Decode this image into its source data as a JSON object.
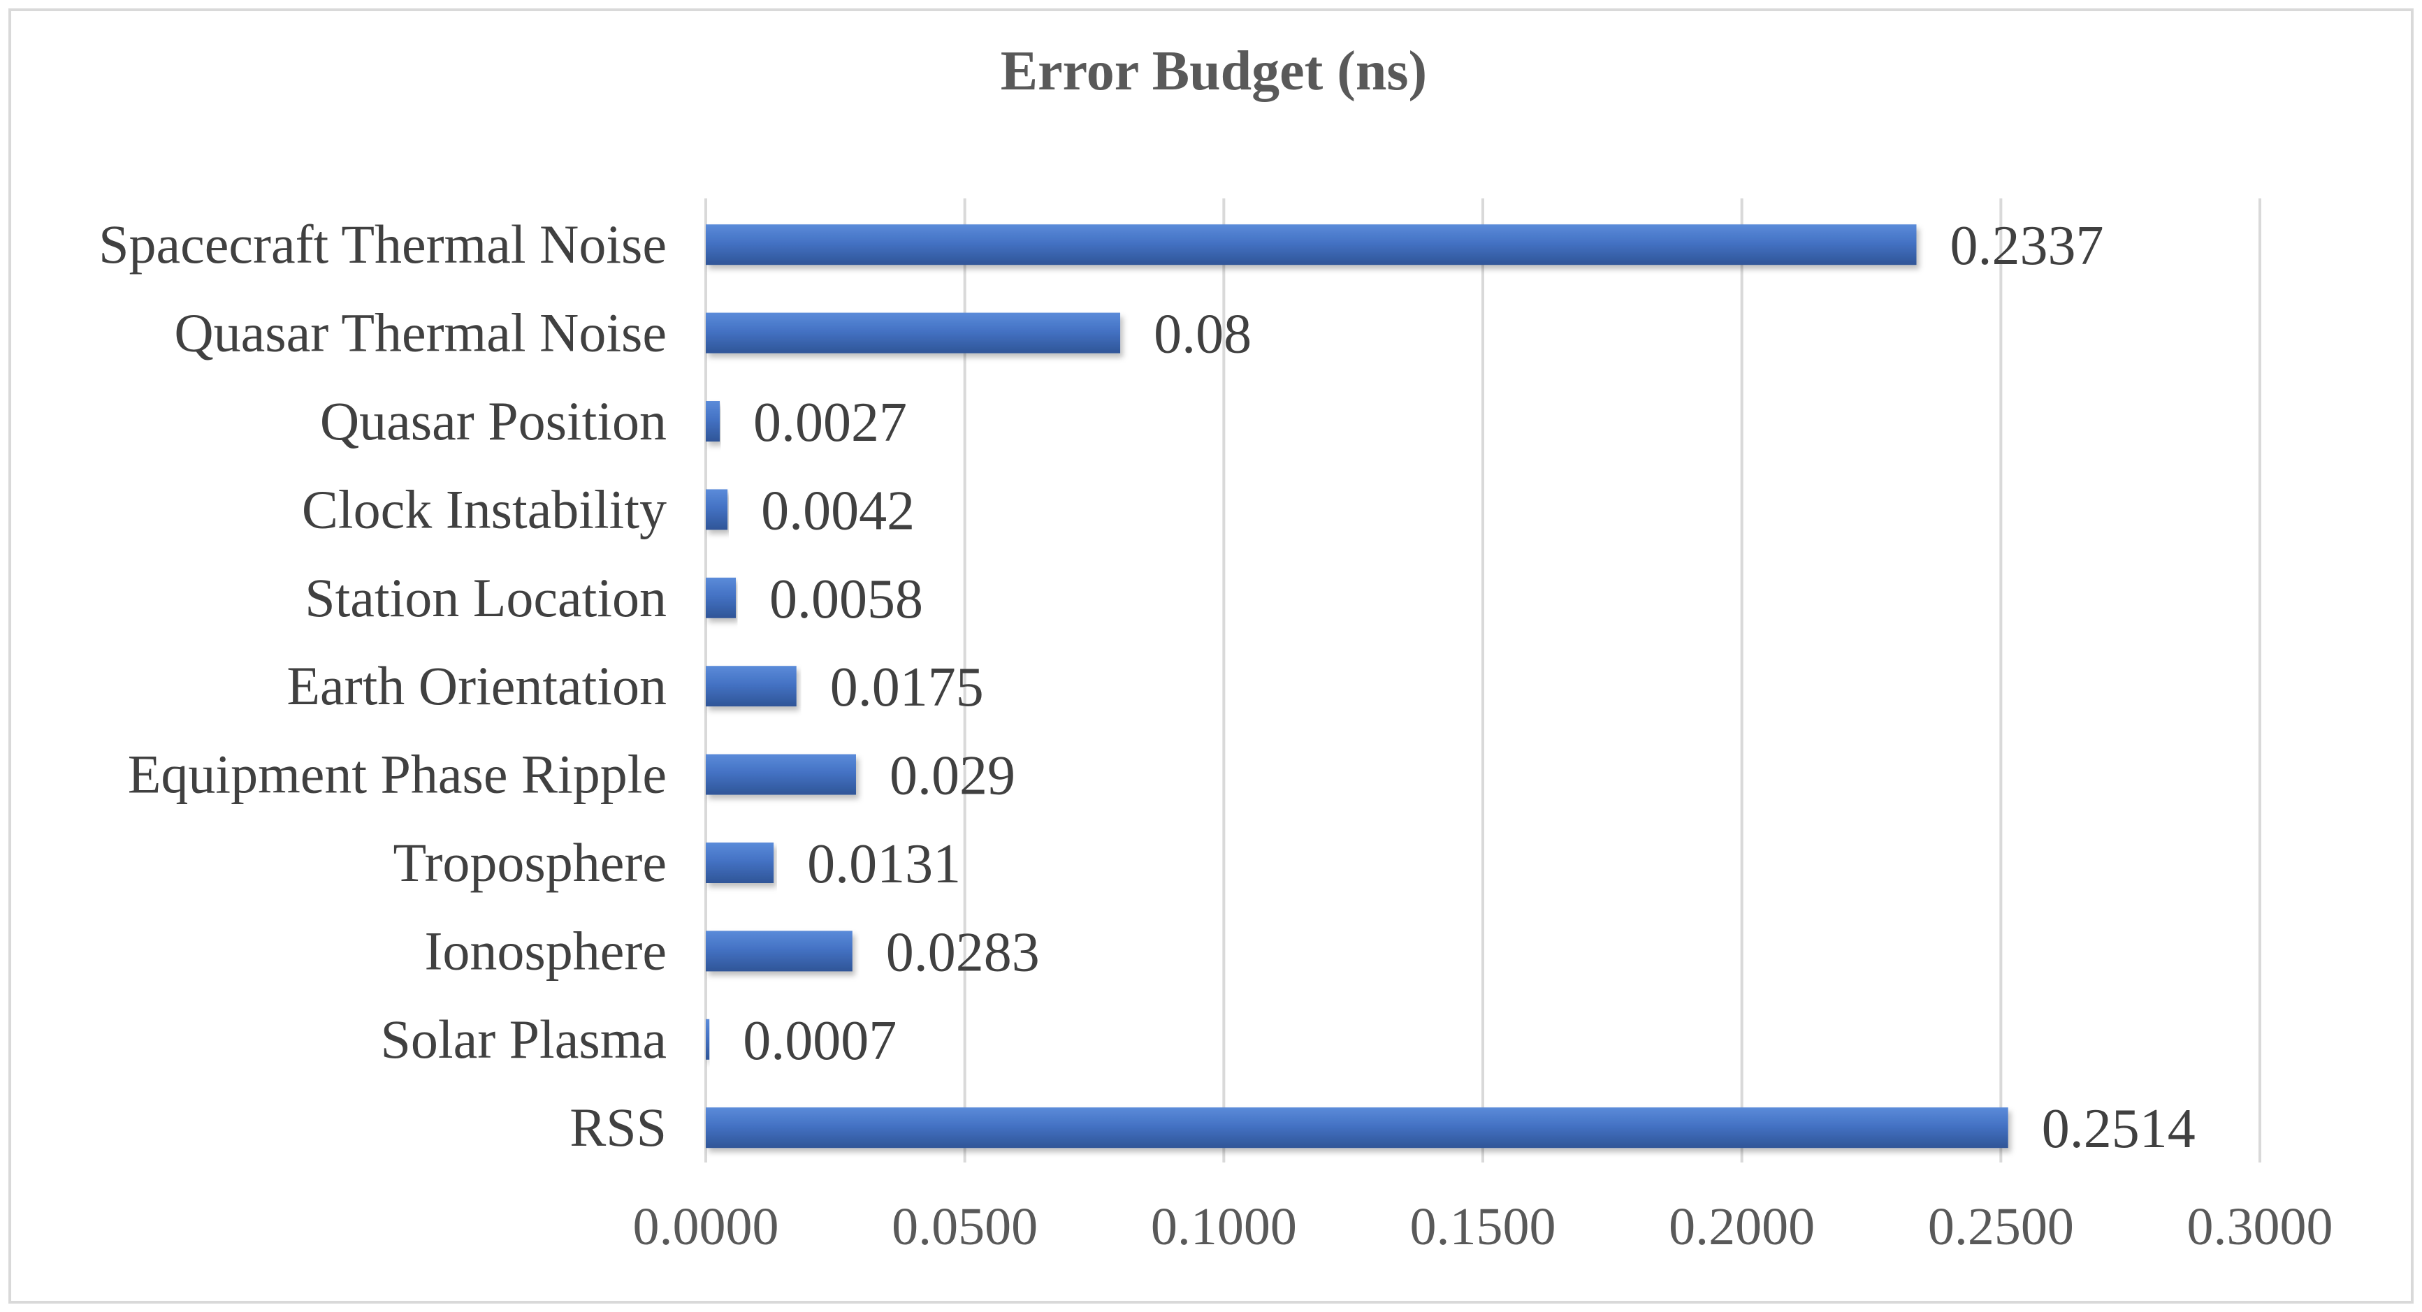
{
  "chart_data": {
    "type": "bar",
    "orientation": "horizontal",
    "title": "Error Budget (ns)",
    "xlabel": "",
    "ylabel": "",
    "categories": [
      "Spacecraft Thermal Noise",
      "Quasar Thermal Noise",
      "Quasar Position",
      "Clock Instability",
      "Station Location",
      "Earth Orientation",
      "Equipment Phase Ripple",
      "Troposphere",
      "Ionosphere",
      "Solar Plasma",
      "RSS"
    ],
    "values": [
      0.2337,
      0.08,
      0.0027,
      0.0042,
      0.0058,
      0.0175,
      0.029,
      0.0131,
      0.0283,
      0.0007,
      0.2514
    ],
    "data_labels": [
      "0.2337",
      "0.08",
      "0.0027",
      "0.0042",
      "0.0058",
      "0.0175",
      "0.029",
      "0.0131",
      "0.0283",
      "0.0007",
      "0.2514"
    ],
    "xlim": [
      0,
      0.3
    ],
    "xticks": [
      0,
      0.05,
      0.1,
      0.15,
      0.2,
      0.25,
      0.3
    ],
    "xtick_labels": [
      "0.0000",
      "0.0500",
      "0.1000",
      "0.1500",
      "0.2000",
      "0.2500",
      "0.3000"
    ],
    "grid": true,
    "legend": "none",
    "colors": {
      "bar": "#4472c4",
      "bar_dark": "#2f5597",
      "bar_light": "#5b8bd9",
      "grid": "#d9d9d9",
      "border": "#d9d9d9",
      "title_text": "#595959",
      "label_text": "#404040"
    }
  }
}
